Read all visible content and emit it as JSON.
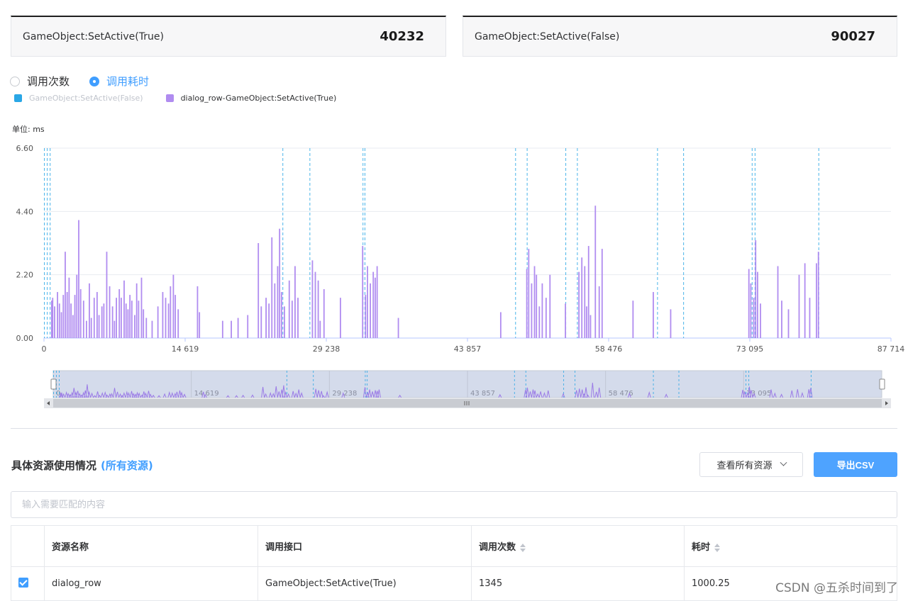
{
  "summary": [
    {
      "label": "GameObject:SetActive(True)",
      "value": "40232"
    },
    {
      "label": "GameObject:SetActive(False)",
      "value": "90027"
    }
  ],
  "mode": {
    "option1": "调用次数",
    "option2": "调用耗时",
    "selected": "调用耗时"
  },
  "legend": [
    {
      "label": "GameObject:SetActive(False)",
      "color": "#2aa7e6",
      "active": false
    },
    {
      "label": "dialog_row-GameObject:SetActive(True)",
      "color": "#b08cf0",
      "active": true
    }
  ],
  "unit_label": "单位: ms",
  "chart_data": {
    "type": "bar",
    "y_ticks": [
      "6.60",
      "4.40",
      "2.20",
      "0.00"
    ],
    "x_ticks": [
      "0",
      "14 619",
      "29 238",
      "43 857",
      "58 476",
      "73 095",
      "87 714"
    ],
    "xlim": [
      0,
      87714
    ],
    "ylim": [
      0,
      6.6
    ],
    "series": [
      {
        "name": "GameObject:SetActive(False)",
        "style": "vertical dashed markers",
        "x": [
          0,
          300,
          600,
          24700,
          27500,
          33000,
          33200,
          48800,
          50000,
          54000,
          55200,
          63500,
          66200,
          73300,
          73600,
          80200
        ]
      },
      {
        "name": "dialog_row-GameObject:SetActive(True)",
        "points": [
          [
            800,
            1.3
          ],
          [
            900,
            1.4
          ],
          [
            1100,
            1.1
          ],
          [
            1400,
            1.6
          ],
          [
            1600,
            1.2
          ],
          [
            1800,
            0.9
          ],
          [
            2000,
            1.5
          ],
          [
            2200,
            3.0
          ],
          [
            2400,
            1.6
          ],
          [
            2600,
            2.1
          ],
          [
            2800,
            1.2
          ],
          [
            3000,
            0.8
          ],
          [
            3200,
            1.5
          ],
          [
            3400,
            2.2
          ],
          [
            3600,
            4.1
          ],
          [
            3800,
            1.7
          ],
          [
            4100,
            1.3
          ],
          [
            4400,
            0.6
          ],
          [
            4700,
            1.9
          ],
          [
            4900,
            0.7
          ],
          [
            5200,
            1.4
          ],
          [
            5500,
            1.6
          ],
          [
            5700,
            0.8
          ],
          [
            6000,
            1.1
          ],
          [
            6200,
            1.2
          ],
          [
            6500,
            3.0
          ],
          [
            6800,
            1.8
          ],
          [
            7100,
            1.1
          ],
          [
            7300,
            0.6
          ],
          [
            7500,
            1.4
          ],
          [
            7800,
            1.7
          ],
          [
            8000,
            1.4
          ],
          [
            8300,
            2.0
          ],
          [
            8500,
            1.2
          ],
          [
            8700,
            1.0
          ],
          [
            8900,
            1.5
          ],
          [
            9100,
            1.3
          ],
          [
            9400,
            0.8
          ],
          [
            9600,
            1.9
          ],
          [
            9800,
            1.3
          ],
          [
            10100,
            2.1
          ],
          [
            10300,
            1.0
          ],
          [
            10600,
            0.7
          ],
          [
            11200,
            0.6
          ],
          [
            11800,
            1.1
          ],
          [
            12300,
            1.6
          ],
          [
            12600,
            1.4
          ],
          [
            12900,
            1.2
          ],
          [
            13100,
            1.8
          ],
          [
            13400,
            2.2
          ],
          [
            13600,
            1.5
          ],
          [
            13900,
            1.0
          ],
          [
            15900,
            1.8
          ],
          [
            16100,
            0.9
          ],
          [
            18500,
            0.6
          ],
          [
            19400,
            0.6
          ],
          [
            20100,
            0.7
          ],
          [
            21100,
            0.8
          ],
          [
            22200,
            3.3
          ],
          [
            22500,
            1.1
          ],
          [
            23000,
            1.4
          ],
          [
            23300,
            1.2
          ],
          [
            23600,
            3.5
          ],
          [
            23900,
            1.9
          ],
          [
            24200,
            2.5
          ],
          [
            24400,
            3.8
          ],
          [
            24600,
            1.6
          ],
          [
            24900,
            1.1
          ],
          [
            25400,
            2.0
          ],
          [
            25700,
            1.3
          ],
          [
            26000,
            2.5
          ],
          [
            26300,
            1.4
          ],
          [
            27800,
            2.7
          ],
          [
            28100,
            2.3
          ],
          [
            28400,
            2.0
          ],
          [
            28600,
            0.6
          ],
          [
            29000,
            1.7
          ],
          [
            30700,
            1.4
          ],
          [
            33000,
            3.2
          ],
          [
            33300,
            1.5
          ],
          [
            33500,
            2.5
          ],
          [
            33800,
            1.9
          ],
          [
            34100,
            2.3
          ],
          [
            34300,
            2.1
          ],
          [
            34500,
            2.5
          ],
          [
            36700,
            0.7
          ],
          [
            47300,
            0.9
          ],
          [
            50000,
            2.4
          ],
          [
            50200,
            3.1
          ],
          [
            50500,
            1.9
          ],
          [
            50800,
            2.5
          ],
          [
            51000,
            2.2
          ],
          [
            51300,
            1.1
          ],
          [
            51600,
            1.9
          ],
          [
            52000,
            1.4
          ],
          [
            52400,
            2.2
          ],
          [
            54000,
            1.2
          ],
          [
            55400,
            2.3
          ],
          [
            55700,
            2.8
          ],
          [
            56000,
            2.5
          ],
          [
            56200,
            1.1
          ],
          [
            56400,
            3.2
          ],
          [
            56600,
            0.8
          ],
          [
            57100,
            4.6
          ],
          [
            57500,
            1.8
          ],
          [
            57800,
            3.1
          ],
          [
            61000,
            1.3
          ],
          [
            63100,
            1.6
          ],
          [
            64900,
            1.0
          ],
          [
            73000,
            2.4
          ],
          [
            73200,
            1.9
          ],
          [
            73500,
            1.4
          ],
          [
            73700,
            3.4
          ],
          [
            73900,
            2.3
          ],
          [
            74200,
            1.2
          ],
          [
            76000,
            2.5
          ],
          [
            76400,
            1.3
          ],
          [
            77100,
            1.0
          ],
          [
            78200,
            2.2
          ],
          [
            78800,
            2.6
          ],
          [
            79300,
            1.4
          ],
          [
            80000,
            2.6
          ],
          [
            80200,
            3.0
          ]
        ]
      }
    ],
    "zoom_ticks": [
      "0",
      "14 619",
      "29 238",
      "43 857",
      "58 476",
      "73 095"
    ],
    "grid": true,
    "legend_position": "top-left"
  },
  "resources": {
    "title": "具体资源使用情况",
    "scope": "(所有资源)",
    "filter_label": "查看所有资源",
    "export_label": "导出CSV",
    "search_placeholder": "输入需要匹配的内容",
    "columns": [
      "资源名称",
      "调用接口",
      "调用次数",
      "耗时"
    ],
    "rows": [
      {
        "checked": true,
        "name": "dialog_row",
        "api": "GameObject:SetActive(True)",
        "count": "1345",
        "time": "1000.25"
      }
    ]
  },
  "watermark": "CSDN @五杀时间到了"
}
